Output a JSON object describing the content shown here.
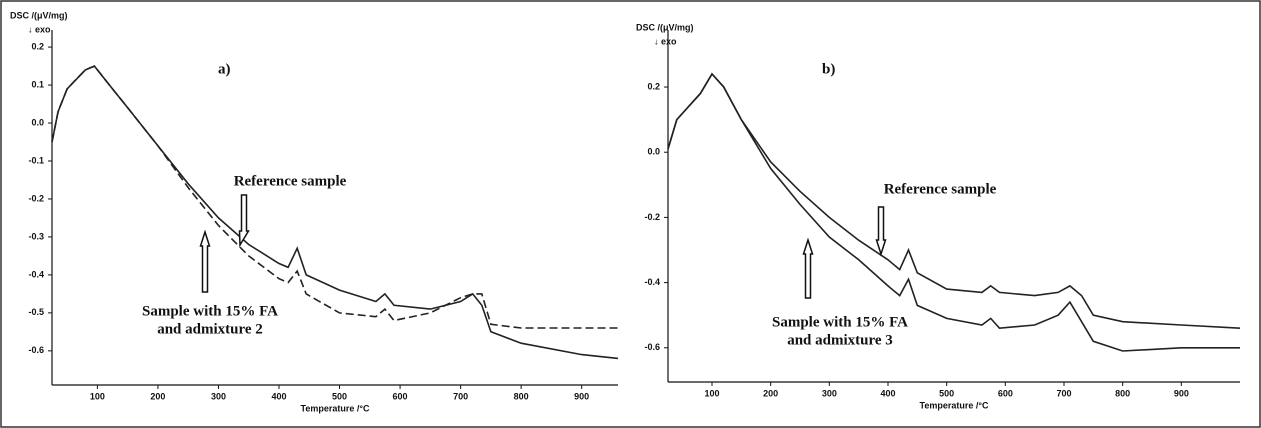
{
  "chart_data": [
    {
      "type": "line",
      "title": "a)",
      "y_label": "DSC /(μV/mg)",
      "direction_label": "↓ exo",
      "x_label": "Temperature /°C",
      "x": [
        25,
        35,
        50,
        80,
        95,
        120,
        150,
        200,
        250,
        300,
        350,
        400,
        415,
        430,
        445,
        500,
        560,
        575,
        590,
        650,
        700,
        720,
        735,
        750,
        800,
        900,
        960
      ],
      "series": [
        {
          "color": "#222222",
          "dash": false,
          "values": [
            -0.05,
            0.03,
            0.09,
            0.14,
            0.15,
            0.1,
            0.04,
            -0.06,
            -0.16,
            -0.25,
            -0.32,
            -0.37,
            -0.38,
            -0.33,
            -0.4,
            -0.44,
            -0.47,
            -0.45,
            -0.48,
            -0.49,
            -0.47,
            -0.45,
            -0.48,
            -0.55,
            -0.58,
            -0.61,
            -0.62
          ]
        },
        {
          "color": "#222222",
          "dash": true,
          "values": [
            -0.05,
            0.03,
            0.09,
            0.14,
            0.15,
            0.1,
            0.04,
            -0.06,
            -0.17,
            -0.27,
            -0.35,
            -0.41,
            -0.42,
            -0.39,
            -0.45,
            -0.5,
            -0.51,
            -0.49,
            -0.52,
            -0.5,
            -0.46,
            -0.45,
            -0.45,
            -0.53,
            -0.54,
            -0.54,
            -0.54
          ]
        }
      ],
      "annotations": [
        "Reference sample",
        "Sample with 15% FA",
        "and admixture 2"
      ],
      "xlim": [
        25,
        960
      ],
      "xticks": [
        100,
        200,
        300,
        400,
        500,
        600,
        700,
        800,
        900
      ],
      "ylim": [
        -0.69,
        0.245
      ],
      "yticks": [
        0.2,
        0.1,
        {
          "value": 0,
          "label": "0.0"
        },
        -0.1,
        -0.2,
        -0.3,
        -0.4,
        -0.5,
        -0.6
      ]
    },
    {
      "type": "line",
      "title": "b)",
      "y_label": "DSC /(μV/mg)",
      "direction_label": "↓ exo",
      "x_label": "Temperature /°C",
      "x": [
        25,
        40,
        60,
        80,
        100,
        120,
        150,
        200,
        250,
        300,
        350,
        400,
        420,
        435,
        450,
        500,
        560,
        575,
        590,
        650,
        690,
        710,
        730,
        750,
        800,
        900,
        1000
      ],
      "series": [
        {
          "color": "#222222",
          "dash": false,
          "values": [
            0.01,
            0.1,
            0.14,
            0.18,
            0.24,
            0.2,
            0.1,
            -0.03,
            -0.12,
            -0.2,
            -0.27,
            -0.33,
            -0.36,
            -0.3,
            -0.37,
            -0.42,
            -0.43,
            -0.41,
            -0.43,
            -0.44,
            -0.43,
            -0.41,
            -0.44,
            -0.5,
            -0.52,
            -0.53,
            -0.54
          ]
        },
        {
          "color": "#222222",
          "dash": false,
          "values": [
            0.01,
            0.1,
            0.14,
            0.18,
            0.24,
            0.2,
            0.1,
            -0.05,
            -0.16,
            -0.26,
            -0.33,
            -0.41,
            -0.44,
            -0.39,
            -0.47,
            -0.51,
            -0.53,
            -0.51,
            -0.54,
            -0.53,
            -0.5,
            -0.46,
            -0.52,
            -0.58,
            -0.61,
            -0.6,
            -0.6
          ]
        }
      ],
      "annotations": [
        "Reference sample",
        "Sample with 15% FA",
        "and admixture 3"
      ],
      "xlim": [
        25,
        1000
      ],
      "xticks": [
        100,
        200,
        300,
        400,
        500,
        600,
        700,
        800,
        900
      ],
      "ylim": [
        -0.705,
        0.375
      ],
      "yticks": [
        0.2,
        {
          "value": 0,
          "label": "0.0"
        },
        -0.2,
        -0.4,
        -0.6
      ]
    }
  ]
}
